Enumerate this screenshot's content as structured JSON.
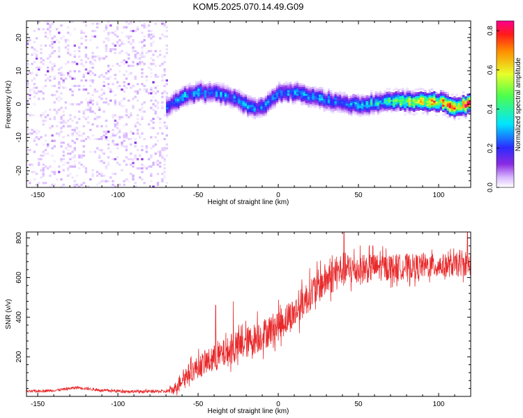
{
  "page_title": "KOM5.2025.070.14.49.G09",
  "chart_data": [
    {
      "type": "heatmap",
      "xlabel": "Height of straight line (km)",
      "ylabel": "Frequency (Hz)",
      "xlim": [
        -157,
        120
      ],
      "ylim": [
        -25,
        25
      ],
      "xticks": [
        -150,
        -100,
        -50,
        0,
        50,
        100
      ],
      "yticks": [
        -20,
        -10,
        0,
        10,
        20
      ],
      "colorbar": {
        "label": "Normalized spectral amplitude",
        "range": [
          0,
          0.85
        ],
        "ticks": [
          0.0,
          0.2,
          0.4,
          0.6,
          0.8
        ],
        "tick_labels": [
          "0.0",
          "0.2",
          "0.4",
          "0.6",
          "0.8"
        ]
      },
      "noise_region_x": [
        -157,
        -70
      ],
      "ridge": {
        "x": [
          -70,
          -60,
          -50,
          -40,
          -30,
          -20,
          -15,
          -10,
          0,
          10,
          20,
          30,
          40,
          50,
          60,
          70,
          80,
          90,
          100,
          110,
          120
        ],
        "y": [
          -1,
          2,
          3.5,
          3,
          2,
          -0.5,
          -1.5,
          -1,
          3,
          3.5,
          2,
          1,
          0,
          -0.5,
          0,
          1,
          0.5,
          0.5,
          0.5,
          -1,
          0
        ],
        "peak_amplitude": [
          0.28,
          0.33,
          0.32,
          0.31,
          0.3,
          0.3,
          0.27,
          0.27,
          0.31,
          0.3,
          0.3,
          0.3,
          0.27,
          0.35,
          0.36,
          0.45,
          0.6,
          0.7,
          0.75,
          0.85,
          0.8
        ]
      }
    },
    {
      "type": "line",
      "xlabel": "Height of straight line (km)",
      "ylabel": "SNR (v/v)",
      "xlim": [
        -157,
        120
      ],
      "ylim": [
        0,
        830
      ],
      "xticks": [
        -150,
        -100,
        -50,
        0,
        50,
        100
      ],
      "yticks": [
        200,
        400,
        600,
        800
      ],
      "color": "#e8292b",
      "trend": {
        "x": [
          -157,
          -140,
          -125,
          -110,
          -90,
          -70,
          -65,
          -60,
          -50,
          -40,
          -30,
          -20,
          -10,
          0,
          10,
          20,
          30,
          40,
          50,
          60,
          80,
          100,
          110,
          120
        ],
        "y": [
          25,
          30,
          45,
          30,
          25,
          25,
          35,
          90,
          150,
          190,
          230,
          270,
          310,
          360,
          420,
          520,
          590,
          640,
          640,
          650,
          655,
          660,
          660,
          665
        ]
      },
      "noise_amplitude": {
        "x": [
          -157,
          -70,
          -60,
          -40,
          -20,
          0,
          20,
          40,
          60,
          120
        ],
        "y": [
          6,
          8,
          45,
          70,
          80,
          80,
          85,
          90,
          70,
          55
        ]
      },
      "spikes": [
        {
          "x": -39,
          "y": 460
        },
        {
          "x": -28,
          "y": 480
        },
        {
          "x": -13,
          "y": 430
        },
        {
          "x": 41,
          "y": 830
        },
        {
          "x": 59,
          "y": 760
        },
        {
          "x": 118,
          "y": 830
        }
      ]
    }
  ]
}
